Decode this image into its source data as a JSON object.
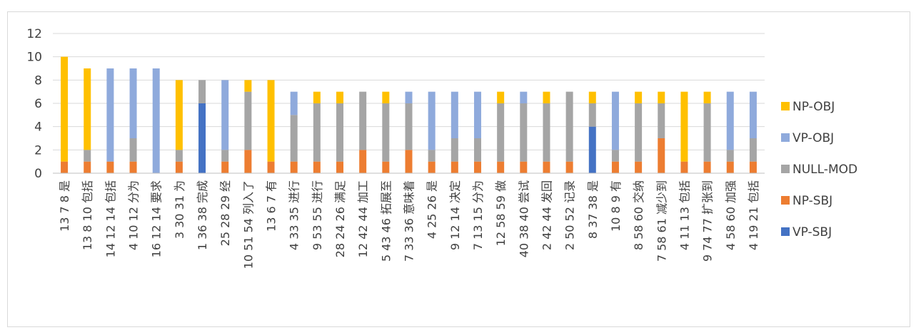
{
  "chart_data": {
    "type": "bar",
    "stacked": true,
    "ylim": [
      0,
      12
    ],
    "yticks": [
      0,
      2,
      4,
      6,
      8,
      10,
      12
    ],
    "grid": true,
    "legend_position": "right",
    "categories": [
      "13 7 8 是",
      "13 8 10 包括",
      "14 12 14 包括",
      "4 10 12 分为",
      "16 12 14 要求",
      "3 30 31 为",
      "1 36 38 完成",
      "25 28 29 经",
      "10 51 54 列入了",
      "13 6 7 有",
      "4 33 35 进行",
      "9 53 55 进行",
      "28 24 26 满足",
      "12 42 44 加工",
      "5 43 46 拓展至",
      "7 33 36 意味着",
      "4 25 26 是",
      "9 12 14 决定",
      "7 13 15 分为",
      "12 58 59 做",
      "40 38 40 尝试",
      "2 42 44 发回",
      "2 50 52 记录",
      "8 37 38 是",
      "10 8 9 有",
      "8 58 60 交纳",
      "7 58 61 减少到",
      "4 11 13 包括",
      "9 74 77 扩张到",
      "4 58 60 加强",
      "4 19 21 包括"
    ],
    "series": [
      {
        "name": "VP-SBJ",
        "color": "#4472c4",
        "values": [
          0,
          0,
          0,
          0,
          0,
          0,
          6,
          0,
          0,
          0,
          0,
          0,
          0,
          0,
          0,
          0,
          0,
          0,
          0,
          0,
          0,
          0,
          0,
          4,
          0,
          0,
          0,
          0,
          0,
          0,
          0
        ]
      },
      {
        "name": "NP-SBJ",
        "color": "#ed7d31",
        "values": [
          1,
          1,
          1,
          1,
          0,
          1,
          0,
          1,
          2,
          1,
          1,
          1,
          1,
          2,
          1,
          2,
          1,
          1,
          1,
          1,
          1,
          1,
          1,
          0,
          1,
          1,
          3,
          1,
          1,
          1,
          1
        ]
      },
      {
        "name": "NULL-MOD",
        "color": "#a5a5a5",
        "values": [
          0,
          1,
          0,
          2,
          0,
          1,
          2,
          1,
          5,
          0,
          4,
          5,
          5,
          5,
          5,
          4,
          1,
          2,
          2,
          5,
          5,
          5,
          6,
          2,
          1,
          5,
          3,
          0,
          5,
          1,
          2
        ]
      },
      {
        "name": "VP-OBJ",
        "color": "#8faadc",
        "values": [
          0,
          0,
          8,
          6,
          9,
          0,
          0,
          6,
          0,
          0,
          2,
          0,
          0,
          0,
          0,
          1,
          5,
          4,
          4,
          0,
          1,
          0,
          0,
          0,
          5,
          0,
          0,
          0,
          0,
          5,
          4
        ]
      },
      {
        "name": "NP-OBJ",
        "color": "#ffc000",
        "values": [
          9,
          7,
          0,
          0,
          0,
          6,
          0,
          0,
          1,
          7,
          0,
          1,
          1,
          0,
          1,
          0,
          0,
          0,
          0,
          1,
          0,
          1,
          0,
          1,
          0,
          1,
          1,
          6,
          1,
          0,
          0
        ]
      }
    ],
    "legend_order": [
      "NP-OBJ",
      "VP-OBJ",
      "NULL-MOD",
      "NP-SBJ",
      "VP-SBJ"
    ]
  }
}
